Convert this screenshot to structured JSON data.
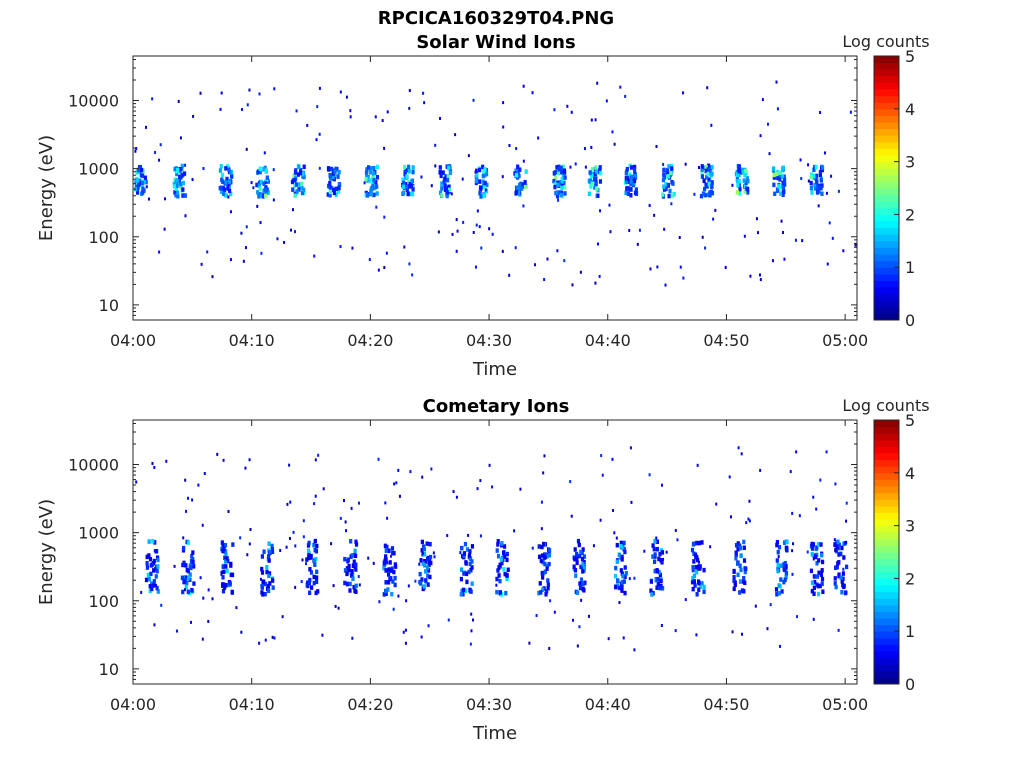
{
  "figure": {
    "title": "RPCICA160329T04.PNG"
  },
  "colors": {
    "background": "#ffffff",
    "axis": "#262626",
    "colormap": "jet"
  },
  "chart_data": [
    {
      "type": "heatmap",
      "title": "Solar Wind Ions",
      "xlabel": "Time",
      "ylabel": "Energy (eV)",
      "x_scale": "time",
      "y_scale": "log",
      "xlim": [
        "04:00",
        "05:01"
      ],
      "ylim": [
        6,
        45000
      ],
      "x_ticks": [
        "04:00",
        "04:10",
        "04:20",
        "04:30",
        "04:40",
        "04:50",
        "05:00"
      ],
      "y_ticks": [
        "10",
        "100",
        "1000",
        "10000"
      ],
      "colorbar": {
        "label": "Log counts",
        "range": [
          0,
          5
        ],
        "ticks": [
          "0",
          "1",
          "2",
          "3",
          "4",
          "5"
        ]
      },
      "grid": false,
      "description_pattern": "periodic energy sweeps every ~2.5 min, peak flux near 700-900 eV",
      "bursts_minutes": [
        0.5,
        3.8,
        7.7,
        10.8,
        13.8,
        16.8,
        20.0,
        23.0,
        26.2,
        29.2,
        32.5,
        35.8,
        38.8,
        41.8,
        45.0,
        48.2,
        51.2,
        54.3,
        57.5
      ],
      "core_energy_eV": [
        500,
        1000
      ],
      "peak_log_counts": 2.8
    },
    {
      "type": "heatmap",
      "title": "Cometary Ions",
      "xlabel": "Time",
      "ylabel": "Energy (eV)",
      "x_scale": "time",
      "y_scale": "log",
      "xlim": [
        "04:00",
        "05:01"
      ],
      "ylim": [
        6,
        45000
      ],
      "x_ticks": [
        "04:00",
        "04:10",
        "04:20",
        "04:30",
        "04:40",
        "04:50",
        "05:00"
      ],
      "y_ticks": [
        "10",
        "100",
        "1000",
        "10000"
      ],
      "colorbar": {
        "label": "Log counts",
        "range": [
          0,
          5
        ],
        "ticks": [
          "0",
          "1",
          "2",
          "3",
          "4",
          "5"
        ]
      },
      "grid": false,
      "bursts_minutes": [
        1.5,
        4.5,
        7.8,
        11.2,
        15.0,
        18.2,
        21.5,
        24.5,
        28.0,
        31.0,
        34.5,
        37.5,
        41.0,
        44.0,
        47.5,
        51.0,
        54.5,
        57.5,
        59.5
      ],
      "core_energy_eV": [
        180,
        600
      ],
      "peak_log_counts": 2.0
    }
  ]
}
